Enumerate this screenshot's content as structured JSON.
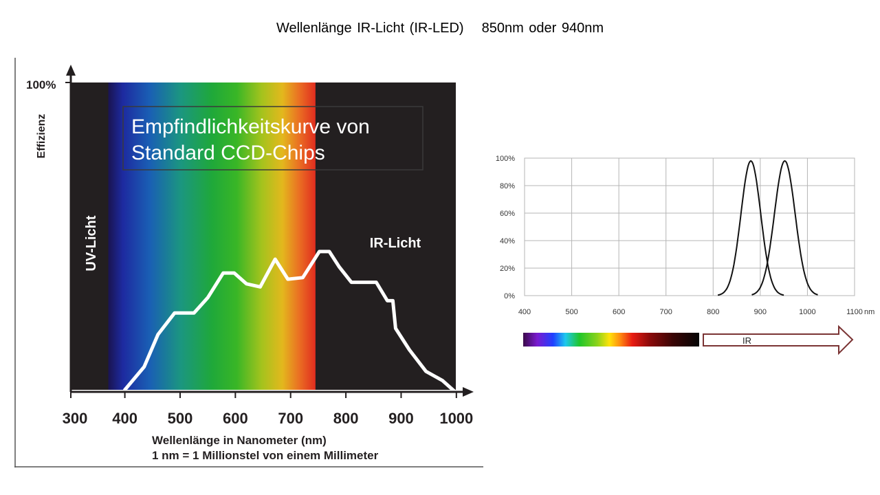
{
  "slide": {
    "title_left": "Wellenlänge IR-Licht (IR-LED)",
    "title_right": "850nm oder  940nm"
  },
  "chart_data": [
    {
      "type": "line",
      "title": "Empfindlichkeitskurve von Standard CCD-Chips",
      "title_line1": "Empfindlichkeitskurve von",
      "title_line2": "Standard CCD-Chips",
      "ylabel": "Effizienz",
      "y_top_label": "100%",
      "xlabel": "Wellenlänge  in Nanometer (nm)",
      "xlabel2": "1 nm = 1 Millionstel von einem Millimeter",
      "xlim": [
        300,
        1000
      ],
      "ylim": [
        0,
        100
      ],
      "x_ticks": [
        300,
        400,
        500,
        600,
        700,
        800,
        900,
        1000
      ],
      "region_labels": {
        "uv": "UV-Licht",
        "ir": "IR-Licht"
      },
      "uv_boundary": 370,
      "ir_boundary": 745,
      "series": [
        {
          "x": [
            400,
            435,
            460,
            490,
            505,
            525,
            550,
            578,
            598,
            620,
            645,
            672,
            695,
            722,
            752,
            770,
            788,
            810,
            830,
            855,
            875,
            885,
            890,
            915,
            945,
            975,
            1000
          ],
          "values": [
            0,
            7.5,
            18,
            25,
            25,
            25,
            30,
            38,
            38,
            34.5,
            33.5,
            42.5,
            36,
            36.5,
            45,
            45,
            40,
            35,
            35,
            35,
            29,
            29,
            20,
            13,
            6,
            3,
            -1
          ]
        }
      ]
    },
    {
      "type": "line",
      "xlim": [
        400,
        1100
      ],
      "ylim": [
        0,
        100
      ],
      "x_ticks": [
        400,
        500,
        600,
        700,
        800,
        900,
        1000,
        1100
      ],
      "x_unit": "nm",
      "y_ticks": [
        "0%",
        "20%",
        "40%",
        "60%",
        "80%",
        "100%"
      ],
      "band_label": "IR",
      "series": [
        {
          "peak": 880,
          "width": 21,
          "values_at_peak": 98
        },
        {
          "peak": 952,
          "width": 22,
          "values_at_peak": 98
        }
      ]
    }
  ]
}
